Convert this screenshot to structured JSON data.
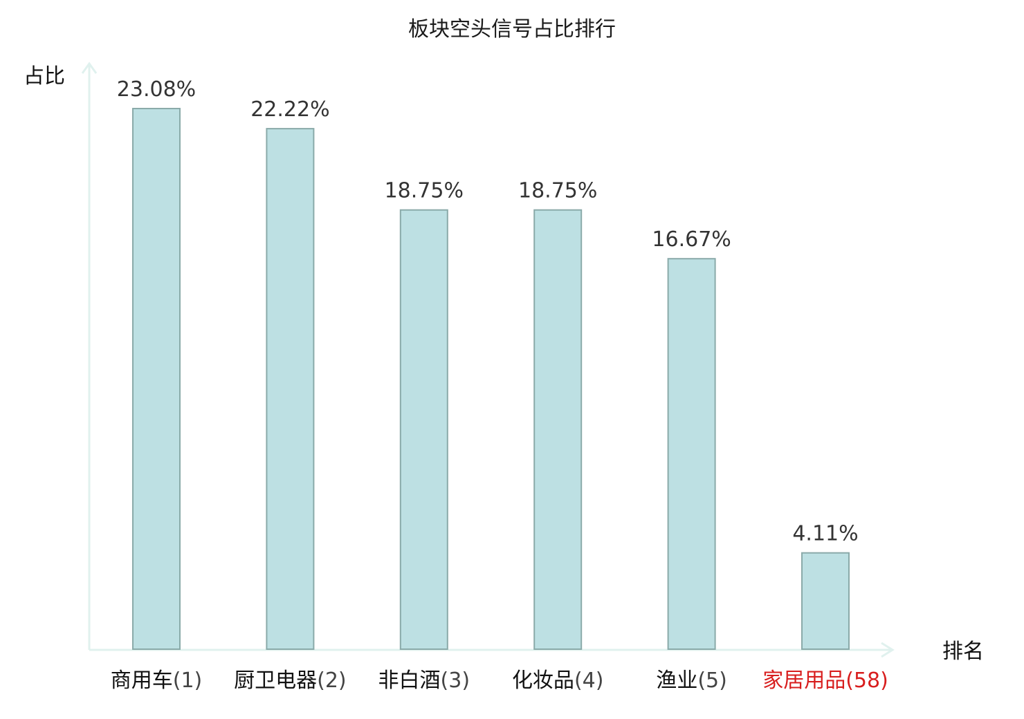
{
  "chart_data": {
    "type": "bar",
    "title": "板块空头信号占比排行",
    "ylabel": "占比",
    "xlabel": "排名",
    "categories": [
      {
        "name": "商用车",
        "rank": "(1)",
        "highlight": false
      },
      {
        "name": "厨卫电器",
        "rank": "(2)",
        "highlight": false
      },
      {
        "name": "非白酒",
        "rank": "(3)",
        "highlight": false
      },
      {
        "name": "化妆品",
        "rank": "(4)",
        "highlight": false
      },
      {
        "name": "渔业",
        "rank": "(5)",
        "highlight": false
      },
      {
        "name": "家居用品",
        "rank": "(58)",
        "highlight": true
      }
    ],
    "values": [
      23.08,
      22.22,
      18.75,
      18.75,
      16.67,
      4.11
    ],
    "value_labels": [
      "23.08%",
      "22.22%",
      "18.75%",
      "18.75%",
      "16.67%",
      "4.11%"
    ],
    "ylim": [
      0,
      23.08
    ],
    "grid": false,
    "colors": {
      "bar_fill": "#bde0e3",
      "bar_stroke": "#8aaaa9",
      "axis": "#e0f1ee",
      "highlight_text": "#d81e1e"
    }
  }
}
